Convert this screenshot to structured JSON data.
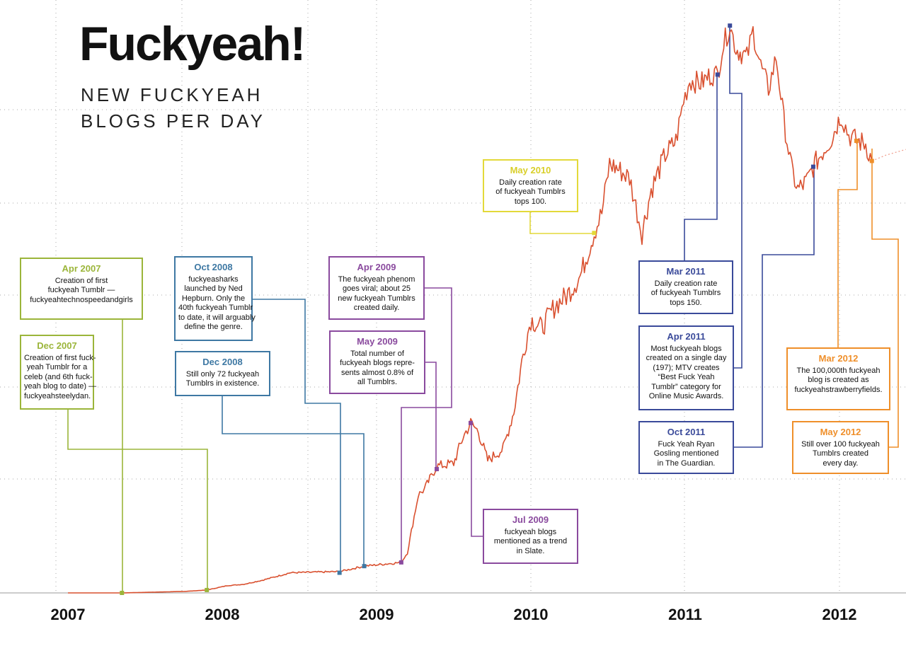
{
  "header": {
    "title": "Fuckyeah!",
    "subtitle_lines": [
      "NEW FUCKYEAH",
      "BLOGS PER DAY"
    ]
  },
  "colors": {
    "line": "#d9502f",
    "grid": "#aaaaaa",
    "y2007": "#9bb53a",
    "y2008": "#3e78a3",
    "y2009": "#8a4a9e",
    "y2010": "#e3d93a",
    "y2011": "#3a4a9a",
    "y2012": "#ef8f2a"
  },
  "chart_data": {
    "type": "line",
    "title": "Fuckyeah! New fuckyeah blogs per day",
    "xlabel": "",
    "ylabel": "New fuckyeah blogs per day",
    "xlim": [
      2006.8,
      2012.43
    ],
    "ylim": [
      0,
      200
    ],
    "grid": true,
    "x_tick_labels": [
      "2007",
      "2008",
      "2009",
      "2010",
      "2011",
      "2012"
    ],
    "x_ticks": [
      2007,
      2008,
      2009,
      2010,
      2011,
      2012
    ],
    "series": [
      {
        "name": "New fuckyeah blogs per day",
        "x": [
          2007.0,
          2007.35,
          2007.75,
          2007.9,
          2008.03,
          2008.14,
          2008.26,
          2008.44,
          2008.76,
          2008.92,
          2009.16,
          2009.2,
          2009.27,
          2009.31,
          2009.39,
          2009.5,
          2009.56,
          2009.61,
          2009.66,
          2009.72,
          2009.82,
          2009.89,
          2009.95,
          2010.0,
          2010.07,
          2010.16,
          2010.23,
          2010.32,
          2010.41,
          2010.46,
          2010.51,
          2010.57,
          2010.64,
          2010.69,
          2010.72,
          2010.78,
          2010.87,
          2010.94,
          2010.99,
          2011.03,
          2011.1,
          2011.17,
          2011.21,
          2011.24,
          2011.29,
          2011.33,
          2011.4,
          2011.44,
          2011.49,
          2011.54,
          2011.59,
          2011.64,
          2011.69,
          2011.73,
          2011.79,
          2011.83,
          2011.9,
          2011.95,
          2012.01,
          2012.06,
          2012.11,
          2012.17,
          2012.21
        ],
        "values": [
          0,
          0,
          0.5,
          1,
          2.5,
          3,
          4.4,
          7,
          7.4,
          9.3,
          10.6,
          14,
          34,
          36,
          44,
          45,
          54,
          59,
          56,
          46,
          50,
          63,
          83,
          95,
          92,
          100,
          103,
          110,
          125,
          132,
          149,
          147,
          144,
          132,
          125,
          140,
          152,
          157,
          171,
          178,
          177,
          180,
          180,
          189,
          197,
          189,
          186,
          195,
          183,
          175,
          186,
          164,
          147,
          140,
          143,
          148,
          154,
          158,
          166,
          159,
          157,
          156,
          150
        ]
      },
      {
        "name": "Projection",
        "style": "dotted",
        "x": [
          2012.21,
          2012.3,
          2012.43
        ],
        "values": [
          150,
          152,
          154
        ]
      }
    ],
    "annotations": [
      {
        "id": "apr-2007",
        "color": "y2007",
        "date": "Apr 2007",
        "x": 2007.35,
        "y": 0,
        "lines": [
          "Creation of first",
          "fuckyeah Tumblr —",
          "fuckyeahtechnospeedandgirls"
        ]
      },
      {
        "id": "dec-2007",
        "color": "y2007",
        "date": "Dec 2007",
        "x": 2007.9,
        "y": 1,
        "lines": [
          "Creation of first fuck-",
          "yeah Tumblr for a",
          "celeb (and 6th fuck-",
          "yeah blog to date) —",
          "fuckyeahsteelydan."
        ]
      },
      {
        "id": "oct-2008",
        "color": "y2008",
        "date": "Oct 2008",
        "x": 2008.76,
        "y": 7,
        "lines": [
          "fuckyeasharks",
          "launched by Ned",
          "Hepburn. Only the",
          "40th fuckyeah Tumblr",
          "to date, it will arguably",
          "define the genre."
        ]
      },
      {
        "id": "dec-2008",
        "color": "y2008",
        "date": "Dec 2008",
        "x": 2008.92,
        "y": 9.3,
        "lines": [
          "Still only 72 fuckyeah",
          "Tumblrs in existence."
        ]
      },
      {
        "id": "apr-2009",
        "color": "y2009",
        "date": "Apr 2009",
        "x": 2009.16,
        "y": 10.6,
        "lines": [
          "The fuckyeah phenom",
          "goes viral; about 25",
          "new fuckyeah Tumblrs",
          "created daily."
        ]
      },
      {
        "id": "may-2009",
        "color": "y2009",
        "date": "May 2009",
        "x": 2009.39,
        "y": 43,
        "lines": [
          "Total number of",
          "fuckyeah blogs repre-",
          "sents almost 0.8% of",
          "all Tumblrs."
        ]
      },
      {
        "id": "jul-2009",
        "color": "y2009",
        "date": "Jul 2009",
        "x": 2009.61,
        "y": 59,
        "lines": [
          "fuckyeah blogs",
          "mentioned as a trend",
          "in Slate."
        ]
      },
      {
        "id": "may-2010",
        "color": "y2010",
        "date": "May 2010",
        "x": 2010.41,
        "y": 125,
        "lines": [
          "Daily creation rate",
          "of fuckyeah Tumblrs",
          "tops 100."
        ]
      },
      {
        "id": "mar-2011",
        "color": "y2011",
        "date": "Mar 2011",
        "x": 2011.21,
        "y": 180,
        "lines": [
          "Daily creation rate",
          "of fuckyeah Tumblrs",
          "tops 150."
        ]
      },
      {
        "id": "apr-2011",
        "color": "y2011",
        "date": "Apr 2011",
        "x": 2011.29,
        "y": 197,
        "lines": [
          "Most fuckyeah blogs",
          "created on a single day",
          "(197); MTV creates",
          "“Best Fuck Yeah",
          "Tumblr” category for",
          "Online Music Awards."
        ]
      },
      {
        "id": "oct-2011",
        "color": "y2011",
        "date": "Oct 2011",
        "x": 2011.83,
        "y": 148,
        "lines": [
          "Fuck Yeah Ryan",
          "Gosling mentioned",
          "in The Guardian."
        ]
      },
      {
        "id": "mar-2012",
        "color": "y2012",
        "date": "Mar 2012",
        "x": 2012.11,
        "y": 157,
        "lines": [
          "The 100,000th fuckyeah",
          "blog is created as",
          "fuckyeahstrawberryfields."
        ]
      },
      {
        "id": "may-2012",
        "color": "y2012",
        "date": "May 2012",
        "x": 2012.21,
        "y": 150,
        "lines": [
          "Still over 100 fuckyeah",
          "Tumblrs created",
          "every day."
        ]
      }
    ]
  }
}
